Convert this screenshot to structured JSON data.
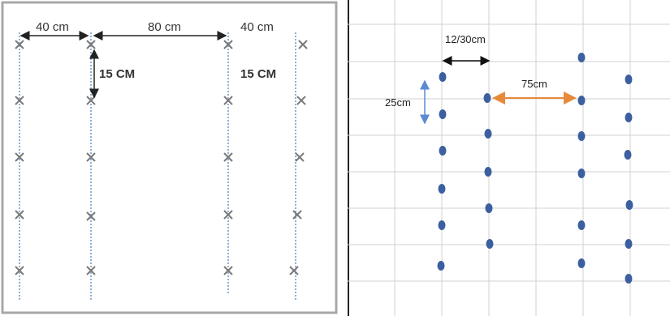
{
  "left_diagram": {
    "labels": {
      "spacing_a": "40 cm",
      "spacing_b": "80 cm",
      "spacing_c": "40 cm",
      "in_row_a": "15 CM",
      "in_row_b": "15 CM"
    },
    "colors": {
      "row_line": "#8fb0d6",
      "marker": "#7a7a7a",
      "frame": "#a8a8a8",
      "dimension": "#222222"
    },
    "icons": {
      "plant": "x-mark-icon"
    }
  },
  "right_diagram": {
    "labels": {
      "in_row": "12/30cm",
      "row_spacing": "75cm",
      "in_row_spacing": "25cm"
    },
    "colors": {
      "dot": "#3c5fa0",
      "grid": "#d0d0d0",
      "arrow_orange": "#e8893a",
      "arrow_blue": "#5b8ad0",
      "arrow_black": "#111111"
    },
    "icons": {
      "plant": "dot-icon"
    }
  }
}
